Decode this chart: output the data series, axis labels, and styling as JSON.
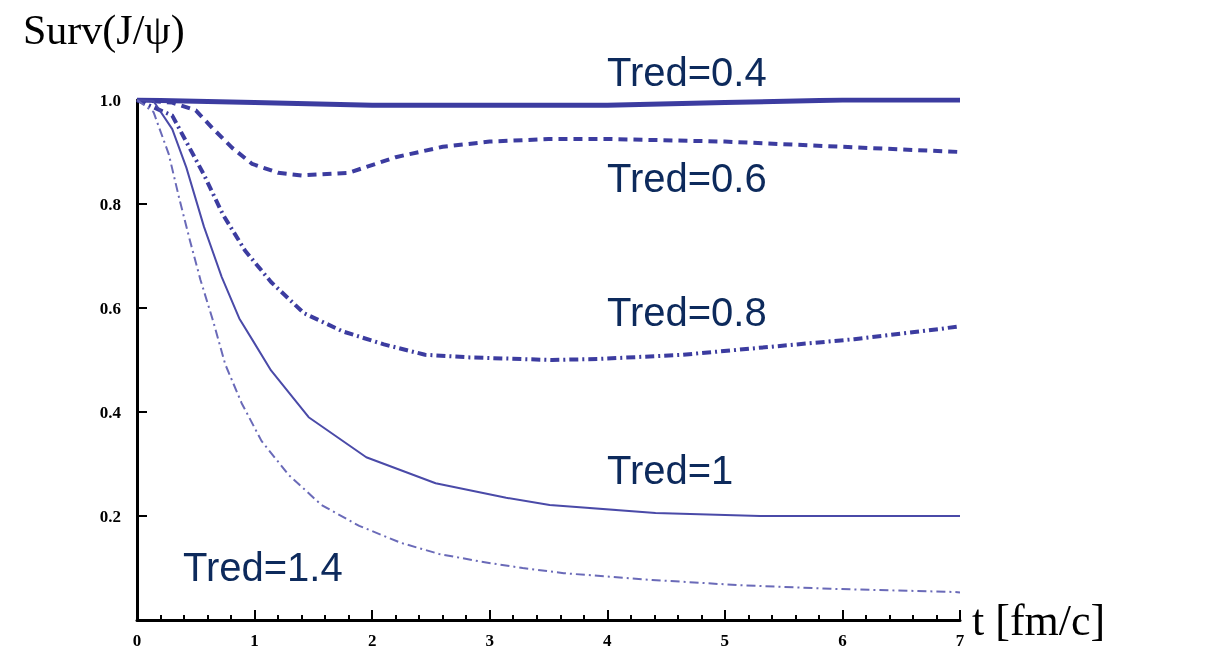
{
  "chart_data": {
    "type": "line",
    "title": "Surv(J/ψ)",
    "xlabel": "t [fm/c]",
    "xlim": [
      0,
      7
    ],
    "xticks": [
      0,
      1,
      2,
      3,
      4,
      5,
      6,
      7
    ],
    "ylim": [
      0,
      1
    ],
    "yticks": [
      0.2,
      0.4,
      0.6,
      0.8,
      {
        "value": 1,
        "label": "1.0"
      }
    ],
    "grid": false,
    "legend": false,
    "marker": "none",
    "series": [
      {
        "name": "Tred=0.4",
        "color": "#3c3ca0",
        "line_style": "solid",
        "x": [
          0,
          1,
          2,
          3,
          4,
          5,
          6,
          7
        ],
        "values": [
          1.0,
          0.995,
          0.99,
          0.99,
          0.99,
          0.995,
          1.0,
          1.0
        ]
      },
      {
        "name": "Tred=0.6",
        "color": "#3c3ca0",
        "line_style": "dashed",
        "x": [
          0,
          0.3,
          0.5,
          0.65,
          0.81,
          0.98,
          1.2,
          1.4,
          1.8,
          2.2,
          2.6,
          3,
          3.5,
          4,
          5,
          6,
          7
        ],
        "values": [
          1.0,
          0.995,
          0.98,
          0.944,
          0.908,
          0.877,
          0.86,
          0.855,
          0.86,
          0.89,
          0.91,
          0.92,
          0.925,
          0.925,
          0.92,
          0.91,
          0.9
        ]
      },
      {
        "name": "Tred=0.8",
        "color": "#3c3ca0",
        "line_style": "dashdot",
        "x": [
          0,
          0.3,
          0.57,
          0.73,
          0.92,
          1.14,
          1.42,
          1.75,
          2.1,
          2.45,
          2.83,
          3.53,
          3.93,
          4.64,
          5.37,
          6.1,
          6.84,
          7
        ],
        "values": [
          1.0,
          0.97,
          0.856,
          0.78,
          0.71,
          0.65,
          0.59,
          0.555,
          0.53,
          0.51,
          0.505,
          0.5,
          0.502,
          0.51,
          0.525,
          0.54,
          0.56,
          0.565
        ]
      },
      {
        "name": "Tred=1",
        "color": "#4a4aa8",
        "line_style": "solid",
        "x": [
          0,
          0.14,
          0.3,
          0.42,
          0.57,
          0.72,
          0.87,
          1.14,
          1.46,
          1.95,
          2.54,
          3.14,
          3.51,
          4.41,
          5.3,
          7
        ],
        "values": [
          1.0,
          0.998,
          0.944,
          0.87,
          0.756,
          0.66,
          0.58,
          0.48,
          0.39,
          0.313,
          0.263,
          0.235,
          0.221,
          0.206,
          0.2,
          0.2
        ]
      },
      {
        "name": "Tred=1.4",
        "color": "#6a6ab8",
        "line_style": "dashdot",
        "x": [
          0,
          0.14,
          0.27,
          0.36,
          0.45,
          0.54,
          0.65,
          0.75,
          0.89,
          1.06,
          1.29,
          1.57,
          1.89,
          2.25,
          2.57,
          2.93,
          3.28,
          3.63,
          4.38,
          5.12,
          5.9,
          6.94,
          7
        ],
        "values": [
          1.0,
          0.977,
          0.896,
          0.81,
          0.73,
          0.654,
          0.573,
          0.492,
          0.417,
          0.344,
          0.279,
          0.221,
          0.181,
          0.148,
          0.127,
          0.112,
          0.1,
          0.09,
          0.077,
          0.067,
          0.06,
          0.054,
          0.053
        ]
      }
    ]
  }
}
